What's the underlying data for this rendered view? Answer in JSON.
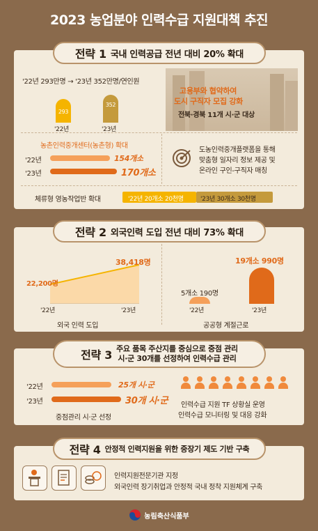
{
  "title": "2023 농업분야 인력수급 지원대책 추진",
  "s1": {
    "label": "전략 1",
    "heading": "국내 인력공급 전년 대비 20% 확대",
    "supply_caption": "'22년 293만명 → '23년 352만명/연인원",
    "bar22_value": "293",
    "bar23_value": "352",
    "year22": "'22년",
    "year23": "'23년",
    "photo_line1": "고용부와 협약하여",
    "photo_line2": "도시 구직자 모집 강화",
    "photo_line3": "전북·경북 11개 시·군 대상",
    "center_title": "농촌인력중개센터(농촌형) 확대",
    "center22_year": "'22년",
    "center22_value": "154개소",
    "center23_year": "'23년",
    "center23_value": "170개소",
    "platform_line1": "도농인력중개플랫폼을 통해",
    "platform_line2": "맞춤형 일자리 정보 제공 및",
    "platform_line3": "온라인 구인-구직자 매칭",
    "stay_label": "체류형 영농작업반 확대",
    "stay22": "'22년 20개소 20천명",
    "stay23": "'23년 30개소 30천명"
  },
  "s2": {
    "label": "전략 2",
    "heading": "외국인력 도입 전년 대비 73% 확대",
    "foreign22": "22,200명",
    "foreign23": "38,418명",
    "year22": "'22년",
    "year23": "'23년",
    "foreign_caption": "외국 인력 도입",
    "public22": "5개소 190명",
    "public23": "19개소 990명",
    "public_caption": "공공형 계절근로"
  },
  "s3": {
    "label": "전략 3",
    "heading_line1": "주요 품목 주산지를 중심으로 중점 관리",
    "heading_line2": "시·군 30개를 선정하여 인력수급 관리",
    "year22": "'22년",
    "year23": "'23년",
    "value22": "25개 시·군",
    "value23": "30개 시·군",
    "bar_caption": "중점관리 시·군 선정",
    "tf_line1": "인력수급 지원 TF 상황실 운영",
    "tf_line2": "인력수급 모니터링 및 대응 강화"
  },
  "s4": {
    "label": "전략 4",
    "heading": "안정적 인력지원을 위한 중장기 제도 기반 구축",
    "line1": "인력지원전문기관 지정",
    "line2": "외국인력 장기취업과 안정적 국내 정착 지원체계 구축"
  },
  "footer": {
    "ministry": "농림축산식품부"
  },
  "colors": {
    "accent_orange": "#e06a1a",
    "bar_yellow": "#f5b400",
    "bar_brown": "#c49a3c",
    "background": "#8a6a4c"
  }
}
